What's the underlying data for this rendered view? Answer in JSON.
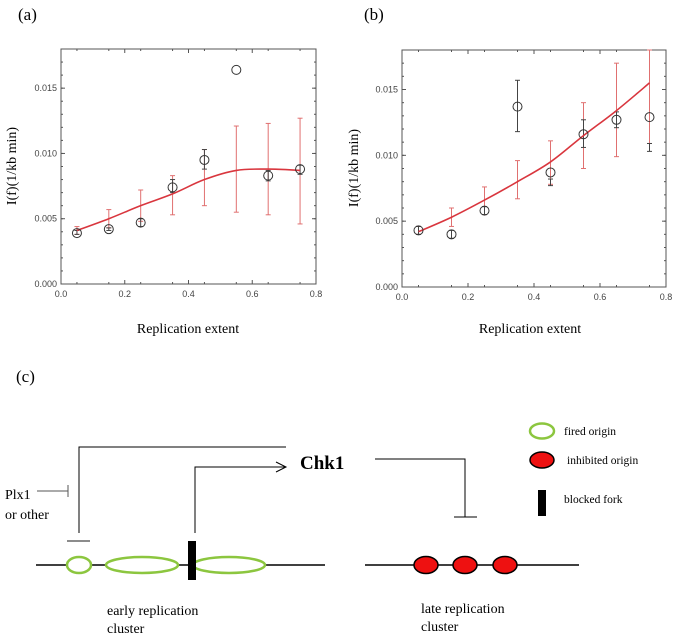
{
  "chart_data": [
    {
      "type": "scatter",
      "panel_label": "(a)",
      "xlabel": "Replication extent",
      "ylabel": "I(f)(1/kb min)",
      "xlim": [
        0.0,
        0.8
      ],
      "ylim": [
        0.0,
        0.018
      ],
      "xticks": [
        "0.0",
        "0.2",
        "0.4",
        "0.6",
        "0.8"
      ],
      "yticks": [
        "0.000",
        "0.005",
        "0.010",
        "0.015"
      ],
      "grid": false,
      "x": [
        0.05,
        0.15,
        0.25,
        0.35,
        0.45,
        0.55,
        0.65,
        0.75
      ],
      "points": [
        0.0039,
        0.0042,
        0.0047,
        0.0074,
        0.0095,
        0.0164,
        0.0083,
        0.0088
      ],
      "point_err_low": [
        0.0038,
        0.0041,
        0.0044,
        0.007,
        0.0088,
        0.0164,
        0.0079,
        0.0084
      ],
      "point_err_high": [
        0.0041,
        0.0043,
        0.005,
        0.008,
        0.0103,
        0.0164,
        0.0087,
        0.0091
      ],
      "fit": [
        0.0041,
        0.005,
        0.006,
        0.0069,
        0.008,
        0.0087,
        0.0088,
        0.0087
      ],
      "fit_err_low": [
        0.0038,
        0.0043,
        0.0048,
        0.0053,
        0.006,
        0.0055,
        0.0053,
        0.0046
      ],
      "fit_err_high": [
        0.0044,
        0.0057,
        0.0072,
        0.0083,
        0.0103,
        0.0121,
        0.0123,
        0.0127
      ],
      "colors": {
        "points": "#333333",
        "fit": "#d9363e",
        "fit_err": "#e07070"
      }
    },
    {
      "type": "scatter",
      "panel_label": "(b)",
      "xlabel": "Replication extent",
      "ylabel": "I(f)(1/kb min)",
      "xlim": [
        0.0,
        0.8
      ],
      "ylim": [
        0.0,
        0.018
      ],
      "xticks": [
        "0.0",
        "0.2",
        "0.4",
        "0.6",
        "0.8"
      ],
      "yticks": [
        "0.000",
        "0.005",
        "0.010",
        "0.015"
      ],
      "grid": false,
      "x": [
        0.05,
        0.15,
        0.25,
        0.35,
        0.45,
        0.55,
        0.65,
        0.75
      ],
      "points": [
        0.0043,
        0.004,
        0.0058,
        0.0137,
        0.0087,
        0.0116,
        0.0127,
        0.0129
      ],
      "point_err_low": [
        0.004,
        0.0037,
        0.0055,
        0.0118,
        0.0077,
        0.0106,
        0.0121,
        0.0103
      ],
      "point_err_high": [
        0.0046,
        0.0043,
        0.0061,
        0.0157,
        0.0082,
        0.0127,
        0.0133,
        0.0109
      ],
      "fit": [
        0.0042,
        0.0053,
        0.0066,
        0.008,
        0.0095,
        0.0115,
        0.0134,
        0.0155
      ],
      "fit_err_low": [
        0.004,
        0.0046,
        0.0055,
        0.0067,
        0.0078,
        0.009,
        0.0099,
        0.0109
      ],
      "fit_err_high": [
        0.0046,
        0.006,
        0.0076,
        0.0096,
        0.0111,
        0.014,
        0.017,
        0.0185
      ],
      "colors": {
        "points": "#333333",
        "fit": "#d9363e",
        "fit_err": "#e07070"
      }
    }
  ],
  "diagram": {
    "panel_label": "(c)",
    "chk1": "Chk1",
    "plx1": "Plx1",
    "or_other": "or other",
    "early_cluster": [
      "early replication",
      "cluster"
    ],
    "late_cluster": [
      "late replication",
      "cluster"
    ],
    "legend": {
      "fired": "fired origin",
      "inhibited": "inhibited origin",
      "blocked": "blocked fork"
    },
    "colors": {
      "fired": "#8cc63f",
      "inhibited": "#ee1111",
      "fork": "#000000"
    }
  }
}
